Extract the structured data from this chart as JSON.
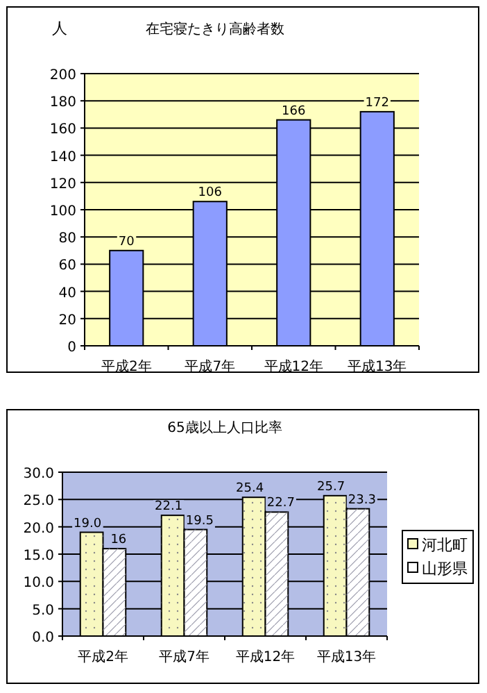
{
  "chart_data": [
    {
      "type": "bar",
      "title": "在宅寝たきり高齢者数",
      "ylabel": "人",
      "categories": [
        "平成2年",
        "平成7年",
        "平成12年",
        "平成13年"
      ],
      "series": [
        {
          "color": "#8c9cff",
          "values": [
            70,
            106,
            166,
            172
          ]
        }
      ],
      "ylim": [
        0,
        200
      ],
      "yticks": [
        0,
        20,
        40,
        60,
        80,
        100,
        120,
        140,
        160,
        180,
        200
      ],
      "grid": "y",
      "data_labels": true,
      "legend": false
    },
    {
      "type": "bar",
      "title": "65歳以上人口比率",
      "categories": [
        "平成2年",
        "平成7年",
        "平成12年",
        "平成13年"
      ],
      "series": [
        {
          "name": "河北町",
          "color": "#f8f8c0",
          "values": [
            19.0,
            22.1,
            25.4,
            25.7
          ],
          "value_labels": [
            "19.0",
            "22.1",
            "25.4",
            "25.7"
          ]
        },
        {
          "name": "山形県",
          "color": "#ffffff",
          "values": [
            16,
            19.5,
            22.7,
            23.3
          ],
          "value_labels": [
            "16",
            "19.5",
            "22.7",
            "23.3"
          ]
        }
      ],
      "ylim": [
        0,
        30
      ],
      "yticks": [
        {
          "value": 0,
          "label": "0.0"
        },
        {
          "value": 5,
          "label": "5.0"
        },
        {
          "value": 10,
          "label": "10.0"
        },
        {
          "value": 15,
          "label": "15.0"
        },
        {
          "value": 20,
          "label": "20.0"
        },
        {
          "value": 25,
          "label": "25.0"
        },
        {
          "value": 30,
          "label": "30.0"
        }
      ],
      "grid": "y",
      "legend": "right"
    }
  ]
}
